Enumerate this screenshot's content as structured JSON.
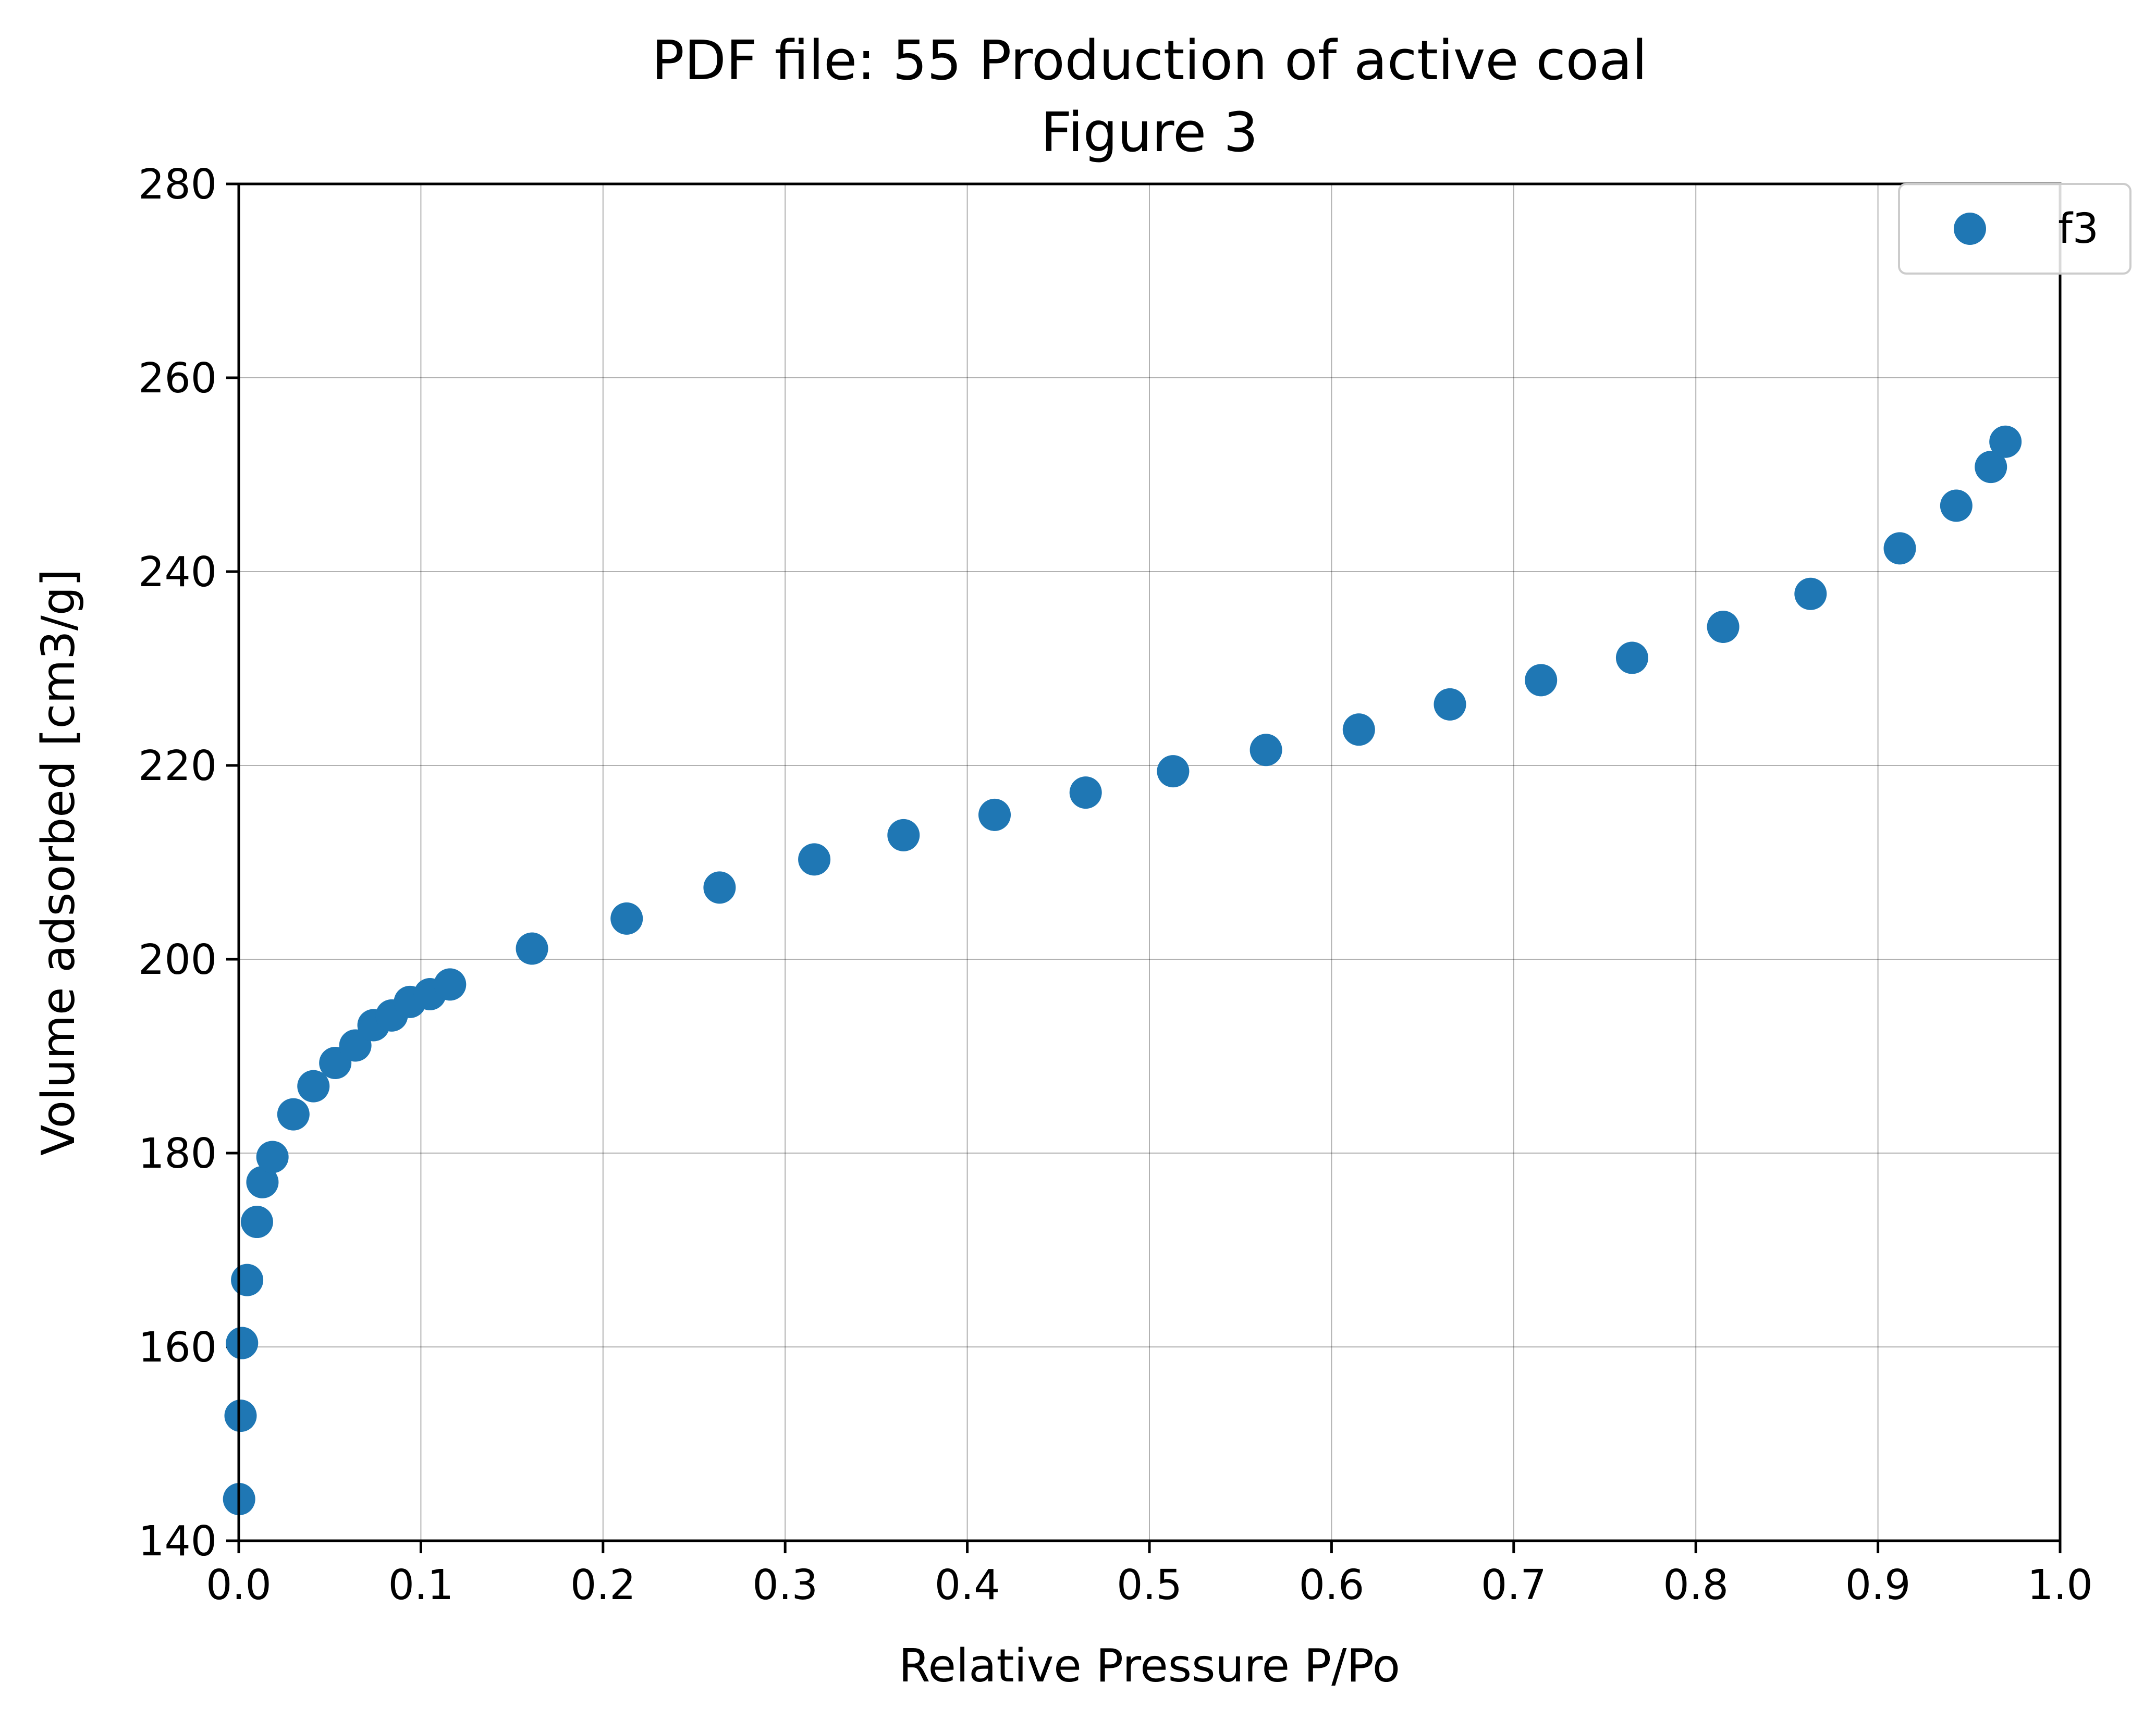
{
  "chart_data": {
    "type": "scatter",
    "title": "PDF file: 55 Production of active coal",
    "subtitle": "Figure 3",
    "xlabel": "Relative Pressure P/Po",
    "ylabel": "Volume adsorbed [cm3/g]",
    "xlim": [
      0.0,
      1.0
    ],
    "ylim": [
      140,
      280
    ],
    "xticks": [
      "0.0",
      "0.1",
      "0.2",
      "0.3",
      "0.4",
      "0.5",
      "0.6",
      "0.7",
      "0.8",
      "0.9",
      "1.0"
    ],
    "yticks": [
      "140",
      "160",
      "180",
      "200",
      "220",
      "240",
      "260",
      "280"
    ],
    "grid": true,
    "legend_position": "top-right",
    "series": [
      {
        "name": "f3",
        "color": "#1f77b4",
        "marker": "circle",
        "points": [
          [
            0.0002,
            144.3
          ],
          [
            0.001,
            152.9
          ],
          [
            0.0018,
            160.4
          ],
          [
            0.0046,
            166.9
          ],
          [
            0.01,
            172.9
          ],
          [
            0.013,
            177.0
          ],
          [
            0.0185,
            179.6
          ],
          [
            0.03,
            184.0
          ],
          [
            0.041,
            186.9
          ],
          [
            0.053,
            189.3
          ],
          [
            0.064,
            191.1
          ],
          [
            0.074,
            193.2
          ],
          [
            0.084,
            194.2
          ],
          [
            0.094,
            195.6
          ],
          [
            0.105,
            196.4
          ],
          [
            0.116,
            197.4
          ],
          [
            0.161,
            201.1
          ],
          [
            0.213,
            204.2
          ],
          [
            0.264,
            207.4
          ],
          [
            0.316,
            210.3
          ],
          [
            0.365,
            212.8
          ],
          [
            0.415,
            214.9
          ],
          [
            0.465,
            217.2
          ],
          [
            0.513,
            219.4
          ],
          [
            0.564,
            221.6
          ],
          [
            0.615,
            223.7
          ],
          [
            0.665,
            226.3
          ],
          [
            0.715,
            228.8
          ],
          [
            0.765,
            231.1
          ],
          [
            0.815,
            234.3
          ],
          [
            0.863,
            237.7
          ],
          [
            0.912,
            242.4
          ],
          [
            0.943,
            246.8
          ],
          [
            0.962,
            250.8
          ],
          [
            0.97,
            253.4
          ]
        ]
      }
    ]
  }
}
